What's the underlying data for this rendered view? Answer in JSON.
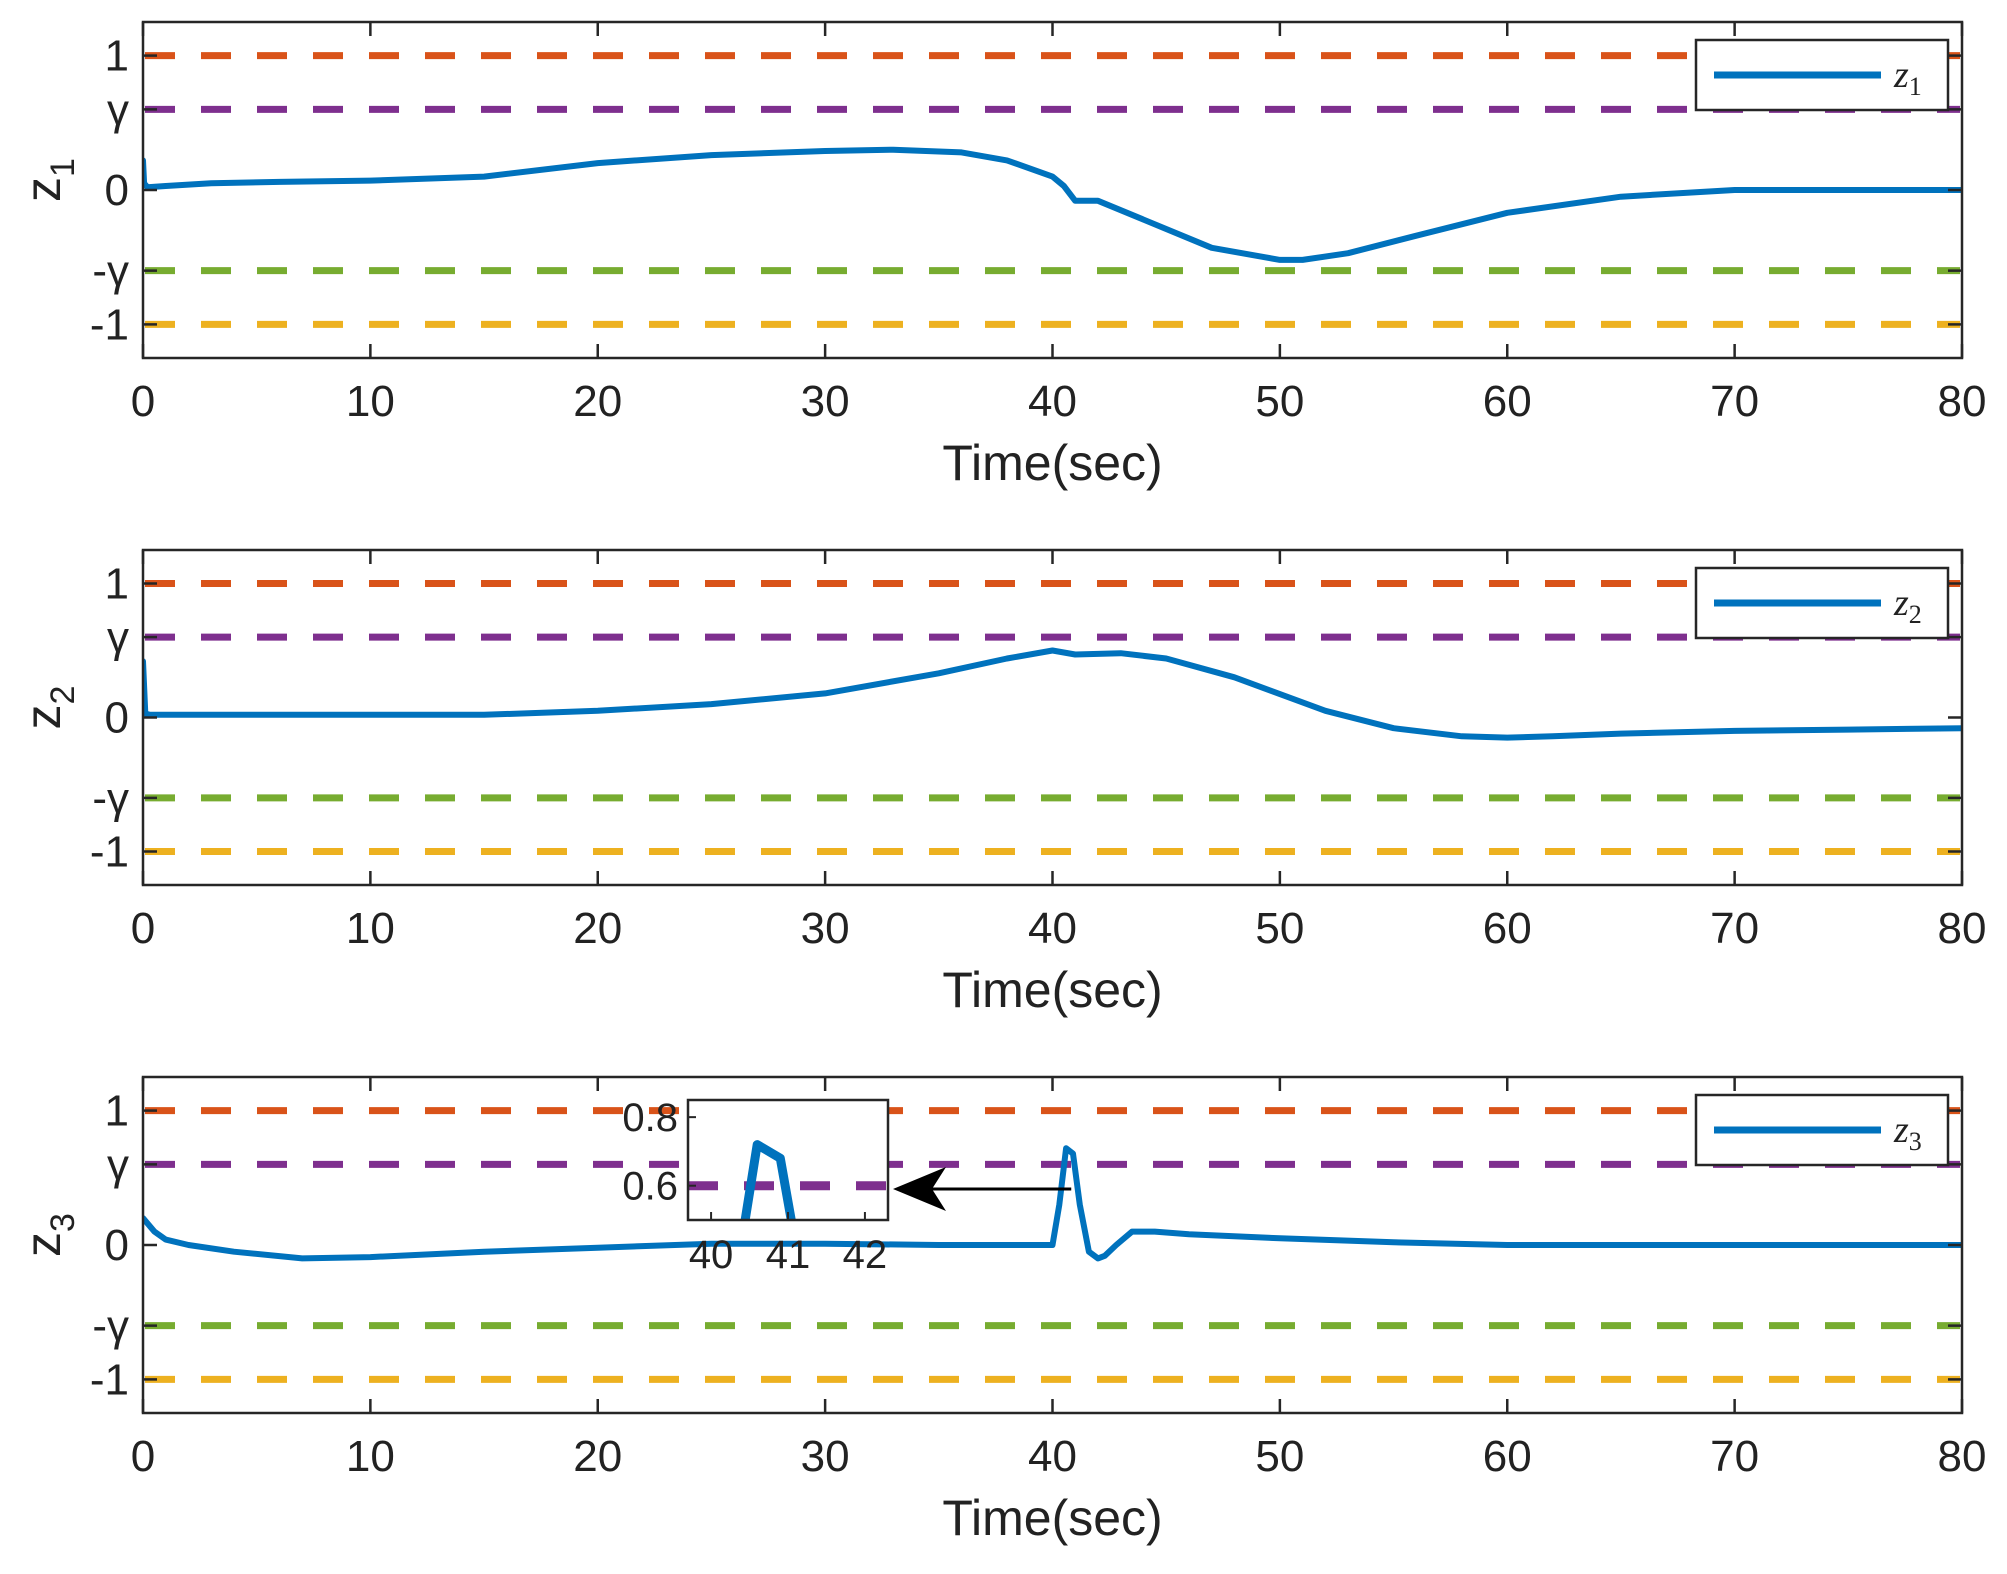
{
  "colors": {
    "signal": "#0072BD",
    "line_plus_one": "#D95319",
    "line_plus_gamma": "#7E2F8E",
    "line_minus_gamma": "#77AC30",
    "line_minus_one": "#EDB120",
    "axis": "#262626",
    "arrow": "#000000"
  },
  "chart_data": [
    {
      "type": "line",
      "ylabel": "z",
      "ylabel_sub": "1",
      "xlabel": "Time(sec)",
      "xlim": [
        0,
        80
      ],
      "ylim": [
        -1.25,
        1.25
      ],
      "x_ticks": [
        0,
        10,
        20,
        30,
        40,
        50,
        60,
        70,
        80
      ],
      "y_ticks": [
        {
          "value": 1,
          "label": "1"
        },
        {
          "value": 0.6,
          "label": "γ"
        },
        {
          "value": 0,
          "label": "0"
        },
        {
          "value": -0.6,
          "label": "-γ"
        },
        {
          "value": -1,
          "label": "-1"
        }
      ],
      "reference_lines": [
        {
          "value": 1,
          "color": "line_plus_one"
        },
        {
          "value": 0.6,
          "color": "line_plus_gamma"
        },
        {
          "value": -0.6,
          "color": "line_minus_gamma"
        },
        {
          "value": -1,
          "color": "line_minus_one"
        }
      ],
      "legend": {
        "name": "z",
        "sub": "1",
        "position": "top-right"
      },
      "series": [
        {
          "name": "z1",
          "x": [
            0,
            0.05,
            0.2,
            1,
            3,
            6,
            10,
            15,
            20,
            25,
            30,
            33,
            36,
            38,
            40,
            40.5,
            41,
            42,
            44,
            47,
            50,
            51,
            53,
            56,
            60,
            65,
            70,
            75,
            80
          ],
          "y": [
            0.22,
            0.05,
            0.02,
            0.03,
            0.05,
            0.06,
            0.07,
            0.1,
            0.2,
            0.26,
            0.29,
            0.3,
            0.28,
            0.22,
            0.1,
            0.03,
            -0.08,
            -0.08,
            -0.22,
            -0.43,
            -0.52,
            -0.52,
            -0.47,
            -0.34,
            -0.17,
            -0.05,
            0.0,
            0.0,
            0.0
          ]
        }
      ]
    },
    {
      "type": "line",
      "ylabel": "z",
      "ylabel_sub": "2",
      "xlabel": "Time(sec)",
      "xlim": [
        0,
        80
      ],
      "ylim": [
        -1.25,
        1.25
      ],
      "x_ticks": [
        0,
        10,
        20,
        30,
        40,
        50,
        60,
        70,
        80
      ],
      "y_ticks": [
        {
          "value": 1,
          "label": "1"
        },
        {
          "value": 0.6,
          "label": "γ"
        },
        {
          "value": 0,
          "label": "0"
        },
        {
          "value": -0.6,
          "label": "-γ"
        },
        {
          "value": -1,
          "label": "-1"
        }
      ],
      "reference_lines": [
        {
          "value": 1,
          "color": "line_plus_one"
        },
        {
          "value": 0.6,
          "color": "line_plus_gamma"
        },
        {
          "value": -0.6,
          "color": "line_minus_gamma"
        },
        {
          "value": -1,
          "color": "line_minus_one"
        }
      ],
      "legend": {
        "name": "z",
        "sub": "2",
        "position": "top-right"
      },
      "series": [
        {
          "name": "z2",
          "x": [
            0,
            0.1,
            0.3,
            2,
            10,
            15,
            20,
            25,
            30,
            35,
            38,
            40,
            41,
            43,
            45,
            48,
            52,
            55,
            58,
            60,
            62,
            65,
            70,
            75,
            80
          ],
          "y": [
            0.42,
            0.03,
            0.02,
            0.02,
            0.02,
            0.02,
            0.05,
            0.1,
            0.18,
            0.33,
            0.44,
            0.5,
            0.47,
            0.48,
            0.44,
            0.3,
            0.05,
            -0.08,
            -0.14,
            -0.15,
            -0.14,
            -0.12,
            -0.1,
            -0.09,
            -0.08
          ]
        }
      ]
    },
    {
      "type": "line",
      "ylabel": "z",
      "ylabel_sub": "3",
      "xlabel": "Time(sec)",
      "xlim": [
        0,
        80
      ],
      "ylim": [
        -1.25,
        1.25
      ],
      "x_ticks": [
        0,
        10,
        20,
        30,
        40,
        50,
        60,
        70,
        80
      ],
      "y_ticks": [
        {
          "value": 1,
          "label": "1"
        },
        {
          "value": 0.6,
          "label": "γ"
        },
        {
          "value": 0,
          "label": "0"
        },
        {
          "value": -0.6,
          "label": "-γ"
        },
        {
          "value": -1,
          "label": "-1"
        }
      ],
      "reference_lines": [
        {
          "value": 1,
          "color": "line_plus_one"
        },
        {
          "value": 0.6,
          "color": "line_plus_gamma"
        },
        {
          "value": -0.6,
          "color": "line_minus_gamma"
        },
        {
          "value": -1,
          "color": "line_minus_one"
        }
      ],
      "legend": {
        "name": "z",
        "sub": "3",
        "position": "top-right"
      },
      "series": [
        {
          "name": "z3",
          "x": [
            0,
            0.5,
            1,
            2,
            4,
            7,
            10,
            15,
            20,
            25,
            30,
            35,
            40,
            40.3,
            40.6,
            40.9,
            41.2,
            41.6,
            42,
            42.3,
            42.8,
            43.5,
            44.5,
            46,
            50,
            55,
            60,
            65,
            70,
            75,
            80
          ],
          "y": [
            0.2,
            0.1,
            0.04,
            0.0,
            -0.05,
            -0.1,
            -0.09,
            -0.05,
            -0.02,
            0.01,
            0.01,
            0.0,
            0.0,
            0.3,
            0.72,
            0.68,
            0.3,
            -0.05,
            -0.1,
            -0.08,
            0.0,
            0.1,
            0.1,
            0.08,
            0.05,
            0.02,
            0.0,
            0.0,
            0.0,
            0.0,
            0.0
          ]
        }
      ],
      "inset": {
        "xlim": [
          39.7,
          42.3
        ],
        "ylim": [
          0.5,
          0.85
        ],
        "x_ticks": [
          40,
          41,
          42
        ],
        "y_ticks": [
          0.6,
          0.8
        ],
        "reference_value": 0.6,
        "position": "upper-middle",
        "arrow_to_time": 41
      }
    }
  ]
}
